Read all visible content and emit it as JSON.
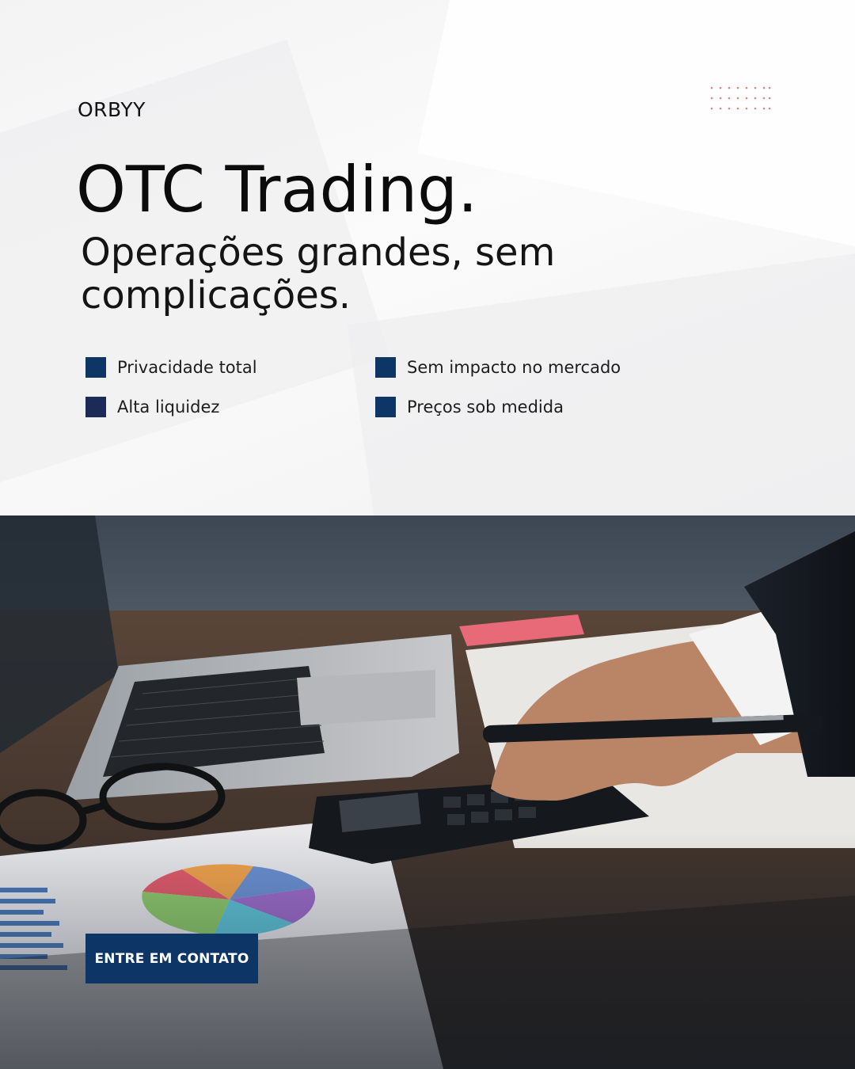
{
  "brand": "ORBYY",
  "headline": "OTC Trading.",
  "subheadline": "Operações grandes, sem complicações.",
  "features": [
    {
      "label": "Privacidade total"
    },
    {
      "label": "Sem impacto no mercado"
    },
    {
      "label": "Alta liquidez"
    },
    {
      "label": "Preços sob medida"
    }
  ],
  "cta_label": "ENTRE EM CONTATO",
  "colors": {
    "accent": "#0d3566",
    "accent_alt": "#1b2a56",
    "dots": "#d98a7a"
  },
  "photo_alt": "Mão usando calculadora ao lado de laptop, óculos e gráficos"
}
